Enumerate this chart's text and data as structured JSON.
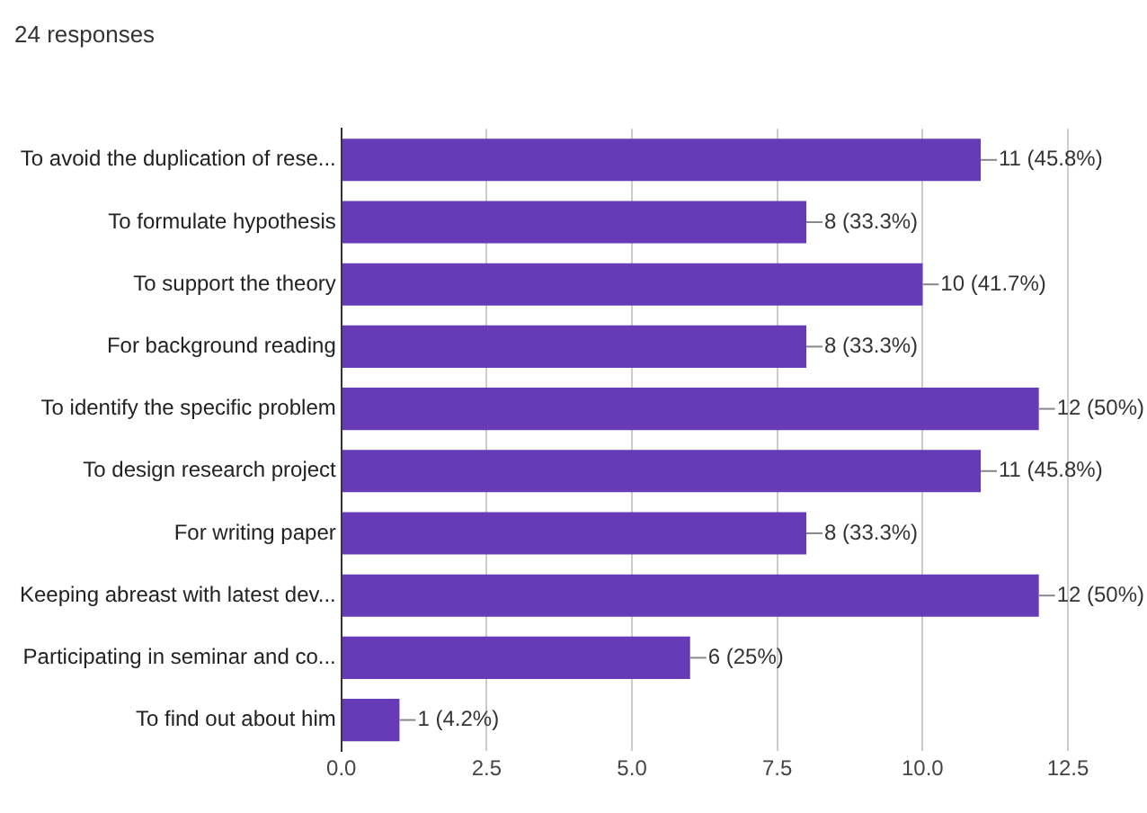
{
  "chart_data": {
    "type": "bar",
    "orientation": "horizontal",
    "title": "24 responses",
    "categories": [
      "To avoid the duplication of rese...",
      "To formulate hypothesis",
      "To support the theory",
      "For background reading",
      "To identify the specific problem",
      "To design research project",
      "For writing paper",
      "Keeping abreast with latest dev...",
      "Participating in seminar and co...",
      "To find out about him"
    ],
    "values": [
      11,
      8,
      10,
      8,
      12,
      11,
      8,
      12,
      6,
      1
    ],
    "value_labels": [
      "11 (45.8%)",
      "8 (33.3%)",
      "10 (41.7%)",
      "8 (33.3%)",
      "12 (50%)",
      "11 (45.8%)",
      "8 (33.3%)",
      "12 (50%)",
      "6 (25%)",
      "1 (4.2%)"
    ],
    "color": "#673ab7",
    "xlim": [
      0,
      12.5
    ],
    "xticks": [
      {
        "value": 0,
        "label": "0.0"
      },
      {
        "value": 2.5,
        "label": "2.5"
      },
      {
        "value": 5,
        "label": "5.0"
      },
      {
        "value": 7.5,
        "label": "7.5"
      },
      {
        "value": 10,
        "label": "10.0"
      },
      {
        "value": 12.5,
        "label": "12.5"
      }
    ],
    "grid": "x",
    "legend": false
  }
}
